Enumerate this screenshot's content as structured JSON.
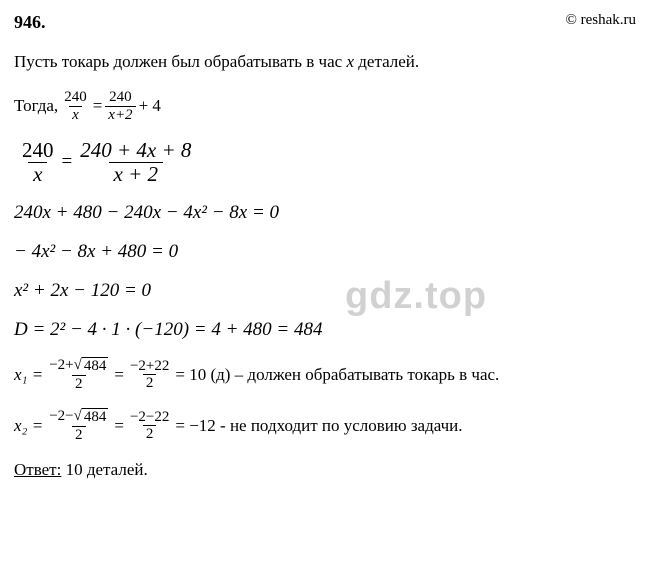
{
  "header": {
    "number": "946.",
    "site": "© reshak.ru"
  },
  "intro": {
    "prefix": "Пусть токарь должен был обрабатывать в час ",
    "var": "x",
    "suffix": " деталей."
  },
  "line_togda": "Тогда,  ",
  "eq1": {
    "f1n": "240",
    "f1d": "x",
    "eq": " = ",
    "f2n": "240",
    "f2d": "x+2",
    "plus": " + 4"
  },
  "eq2": {
    "f1n": "240",
    "f1d": "x",
    "eq": " = ",
    "f2n": "240 + 4x + 8",
    "f2d": "x + 2"
  },
  "eq3": "240x + 480 − 240x − 4x² − 8x = 0",
  "eq4": "− 4x² − 8x + 480 = 0",
  "eq5": "x² + 2x − 120 = 0",
  "eq6": "D = 2² − 4 · 1 · (−120) = 4 + 480 = 484",
  "x1": {
    "lhs": "x₁ = ",
    "f1n_a": "−2+",
    "f1n_sqrt": "484",
    "f1d": "2",
    "mid": " = ",
    "f2n": "−2+22",
    "f2d": "2",
    "res": " = 10 (д) – должен обрабатывать токарь в час."
  },
  "x2": {
    "lhs": "x₂ = ",
    "f1n_a": "−2−",
    "f1n_sqrt": "484",
    "f1d": "2",
    "mid": " = ",
    "f2n": "−2−22",
    "f2d": "2",
    "res": " = −12  - не подходит по условию задачи."
  },
  "answer": {
    "label": "Ответ:",
    "value": "  10 деталей."
  },
  "watermark": "gdz.top",
  "style": {
    "bg": "#ffffff",
    "text_color": "#000000",
    "watermark_color": "rgba(0,0,0,0.18)",
    "base_font_size": 17,
    "math_font_size": 19
  }
}
